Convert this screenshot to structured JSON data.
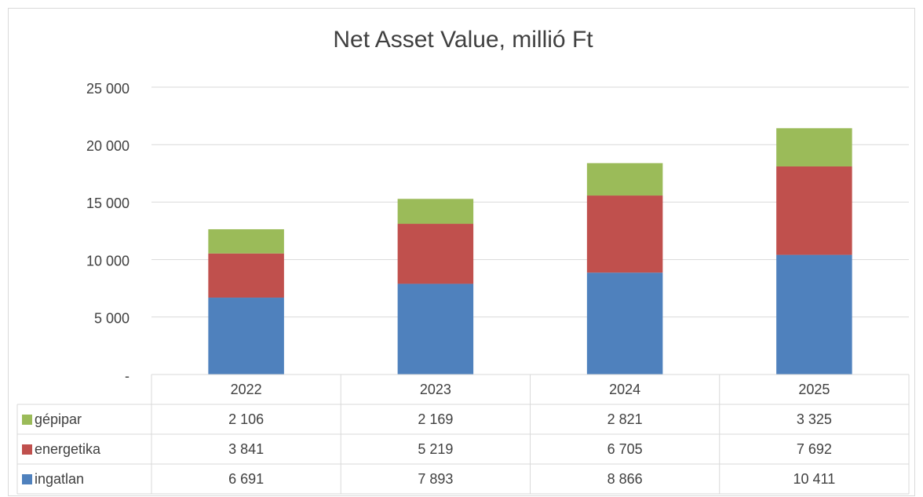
{
  "chart_data": {
    "type": "bar",
    "stacked": true,
    "title": "Net Asset Value, millió Ft",
    "categories": [
      "2022",
      "2023",
      "2024",
      "2025"
    ],
    "series": [
      {
        "name": "ingatlan",
        "color": "#4f81bd",
        "values": [
          6691,
          7893,
          8866,
          10411
        ],
        "value_labels": [
          "6 691",
          "7 893",
          "8 866",
          "10 411"
        ]
      },
      {
        "name": "energetika",
        "color": "#c0504d",
        "values": [
          3841,
          5219,
          6705,
          7692
        ],
        "value_labels": [
          "3 841",
          "5 219",
          "6 705",
          "7 692"
        ]
      },
      {
        "name": "gépipar",
        "color": "#9bbb59",
        "values": [
          2106,
          2169,
          2821,
          3325
        ],
        "value_labels": [
          "2 106",
          "2 169",
          "2 821",
          "3 325"
        ]
      }
    ],
    "ylim": [
      0,
      25000
    ],
    "yticks": [
      {
        "value": 0,
        "label": "-"
      },
      {
        "value": 5000,
        "label": "5 000"
      },
      {
        "value": 10000,
        "label": "10 000"
      },
      {
        "value": 15000,
        "label": "15 000"
      },
      {
        "value": 20000,
        "label": "20 000"
      },
      {
        "value": 25000,
        "label": "25 000"
      }
    ],
    "grid": true
  }
}
